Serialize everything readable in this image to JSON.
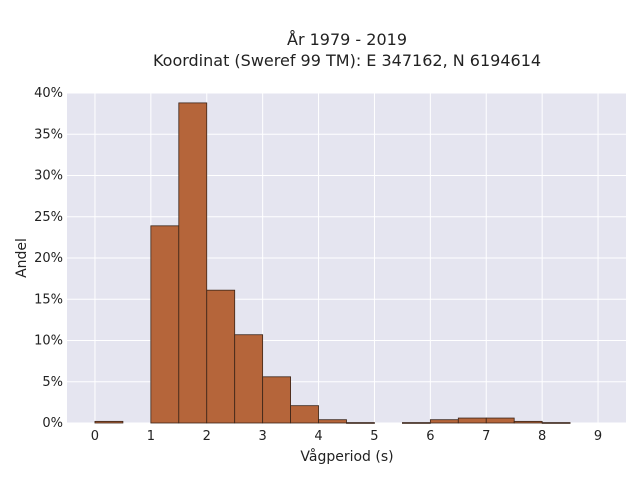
{
  "chart_data": {
    "type": "bar",
    "title": "År 1979 - 2019",
    "subtitle": "Koordinat (Sweref 99 TM): E 347162, N 6194614",
    "xlabel": "Vågperiod (s)",
    "ylabel": "Andel",
    "x_ticks": [
      "0",
      "1",
      "2",
      "3",
      "4",
      "5",
      "6",
      "7",
      "8",
      "9"
    ],
    "y_ticks": [
      "0%",
      "5%",
      "10%",
      "15%",
      "20%",
      "25%",
      "30%",
      "35%",
      "40%"
    ],
    "xlim": [
      -0.5,
      9.5
    ],
    "ylim": [
      0,
      40
    ],
    "bin_width": 0.5,
    "bins": [
      {
        "x0": 0.0,
        "value": 0.2
      },
      {
        "x0": 1.0,
        "value": 23.9
      },
      {
        "x0": 1.5,
        "value": 38.8
      },
      {
        "x0": 2.0,
        "value": 16.1
      },
      {
        "x0": 2.5,
        "value": 10.7
      },
      {
        "x0": 3.0,
        "value": 5.6
      },
      {
        "x0": 3.5,
        "value": 2.1
      },
      {
        "x0": 4.0,
        "value": 0.4
      },
      {
        "x0": 4.5,
        "value": 0.05
      },
      {
        "x0": 5.5,
        "value": 0.05
      },
      {
        "x0": 6.0,
        "value": 0.4
      },
      {
        "x0": 6.5,
        "value": 0.6
      },
      {
        "x0": 7.0,
        "value": 0.6
      },
      {
        "x0": 7.5,
        "value": 0.2
      },
      {
        "x0": 8.0,
        "value": 0.05
      }
    ],
    "grid": true,
    "colors": {
      "bar_fill": "#b5653a",
      "bar_stroke": "#3a2418",
      "plot_bg": "#e5e5f0",
      "grid": "#ffffff"
    }
  }
}
